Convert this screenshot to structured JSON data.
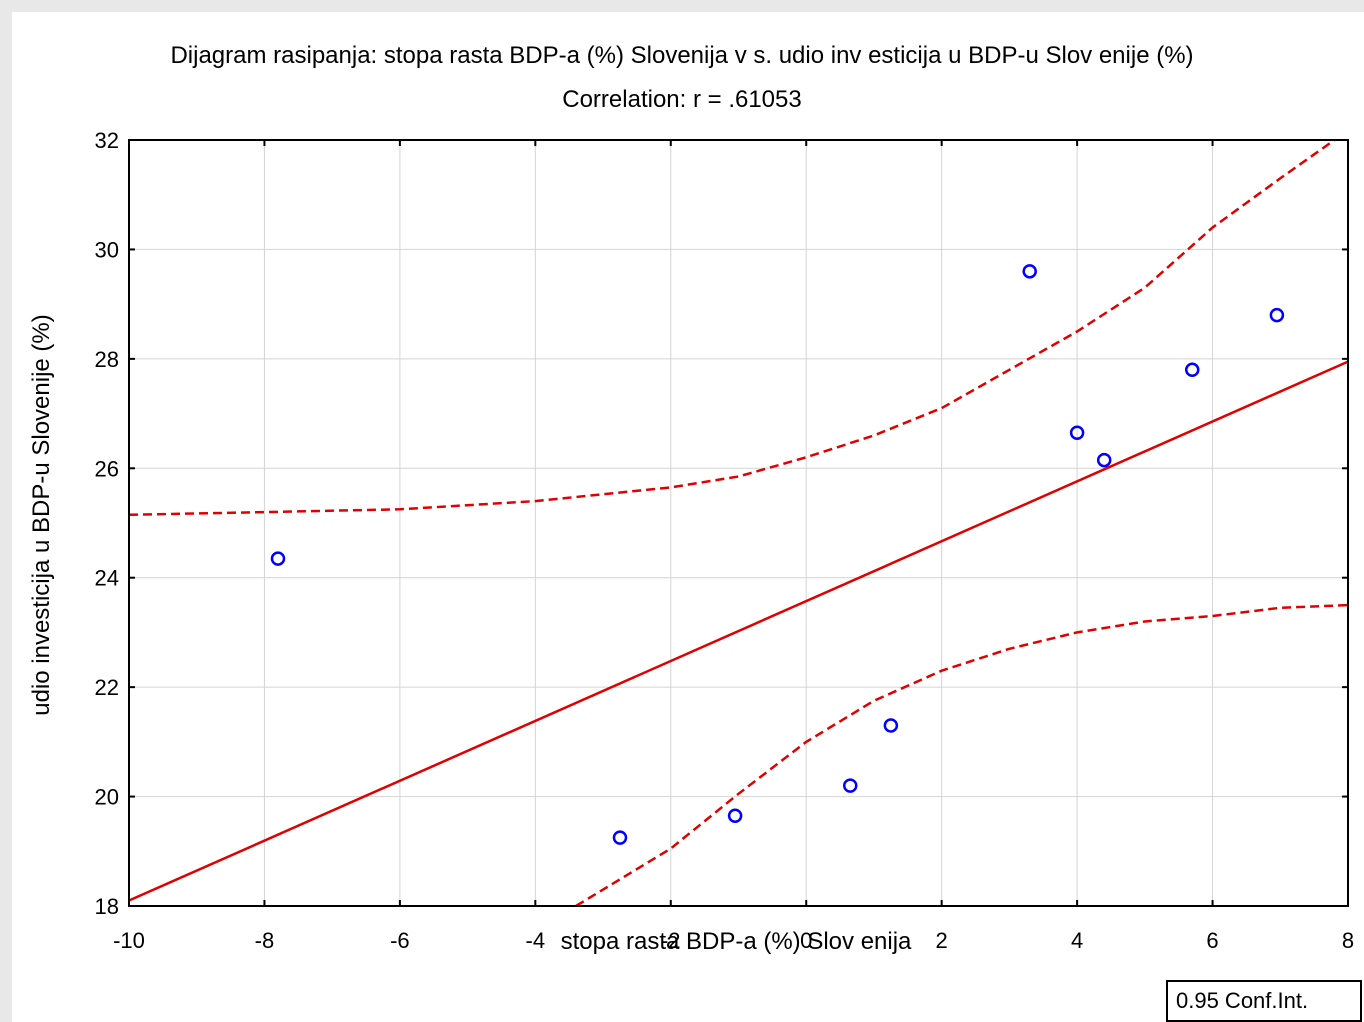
{
  "chart_data": {
    "type": "scatter",
    "title": "Dijagram rasipanja: stopa rasta BDP-a (%) Slovenija v s. udio inv esticija u BDP-u Slov enije (%)",
    "subtitle": "Correlation: r = .61053",
    "xlabel": "stopa rasta BDP-a (%) Slov enija",
    "ylabel": "udio investicija u BDP-u Slovenije (%)",
    "xlim": [
      -10,
      8
    ],
    "ylim": [
      18,
      32
    ],
    "xticks": [
      -10,
      -8,
      -6,
      -4,
      -2,
      0,
      2,
      4,
      6,
      8
    ],
    "yticks": [
      18,
      20,
      22,
      24,
      26,
      28,
      30,
      32
    ],
    "grid": true,
    "points": [
      {
        "x": -7.8,
        "y": 24.35
      },
      {
        "x": -2.75,
        "y": 19.25
      },
      {
        "x": -1.05,
        "y": 19.65
      },
      {
        "x": 0.65,
        "y": 20.2
      },
      {
        "x": 1.25,
        "y": 21.3
      },
      {
        "x": 3.3,
        "y": 29.6
      },
      {
        "x": 4.0,
        "y": 26.65
      },
      {
        "x": 4.4,
        "y": 26.15
      },
      {
        "x": 5.7,
        "y": 27.8
      },
      {
        "x": 6.95,
        "y": 28.8
      }
    ],
    "regression_line": [
      {
        "x": -10,
        "y": 18.1
      },
      {
        "x": 8,
        "y": 27.95
      }
    ],
    "conf_upper": [
      {
        "x": -10,
        "y": 25.15
      },
      {
        "x": -8,
        "y": 25.2
      },
      {
        "x": -6,
        "y": 25.25
      },
      {
        "x": -4,
        "y": 25.4
      },
      {
        "x": -2,
        "y": 25.65
      },
      {
        "x": -1,
        "y": 25.85
      },
      {
        "x": 0,
        "y": 26.2
      },
      {
        "x": 1,
        "y": 26.6
      },
      {
        "x": 2,
        "y": 27.1
      },
      {
        "x": 3,
        "y": 27.8
      },
      {
        "x": 4,
        "y": 28.5
      },
      {
        "x": 5,
        "y": 29.3
      },
      {
        "x": 6,
        "y": 30.4
      },
      {
        "x": 7,
        "y": 31.3
      },
      {
        "x": 7.8,
        "y": 32
      }
    ],
    "conf_lower": [
      {
        "x": -3.4,
        "y": 18
      },
      {
        "x": -2,
        "y": 19.05
      },
      {
        "x": -1,
        "y": 20.05
      },
      {
        "x": 0,
        "y": 21.0
      },
      {
        "x": 1,
        "y": 21.75
      },
      {
        "x": 2,
        "y": 22.3
      },
      {
        "x": 3,
        "y": 22.7
      },
      {
        "x": 4,
        "y": 23.0
      },
      {
        "x": 5,
        "y": 23.2
      },
      {
        "x": 6,
        "y": 23.3
      },
      {
        "x": 7,
        "y": 23.45
      },
      {
        "x": 8,
        "y": 23.5
      }
    ],
    "legend": "0.95 Conf.Int.",
    "colors": {
      "points": "#0000ff",
      "line": "#e00000",
      "grid": "#d4d4d4"
    }
  }
}
